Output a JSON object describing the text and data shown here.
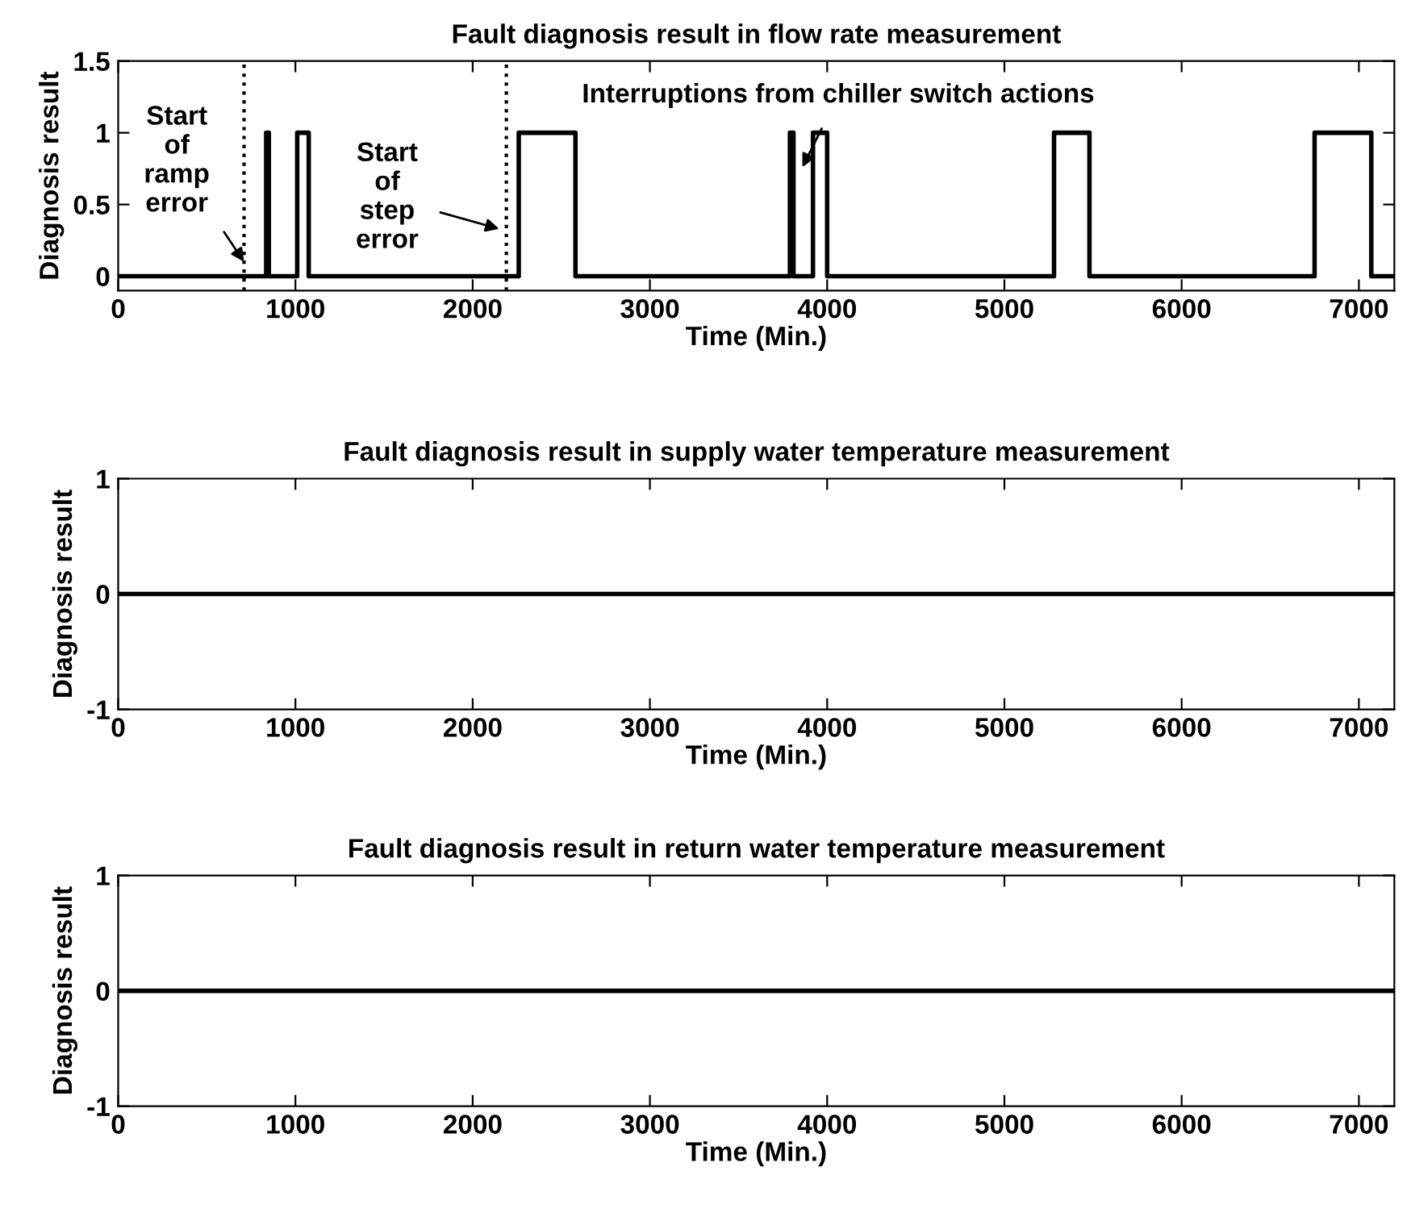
{
  "chart_data": [
    {
      "type": "line",
      "title": "Fault diagnosis result in flow rate measurement",
      "xlabel": "Time (Min.)",
      "ylabel": "Diagnosis result",
      "series": [
        {
          "color": "#000000",
          "x": [
            0,
            835,
            835,
            850,
            850,
            1010,
            1010,
            1075,
            1075,
            2260,
            2260,
            2580,
            2580,
            3790,
            3790,
            3810,
            3810,
            3920,
            3920,
            4000,
            4000,
            5280,
            5280,
            5480,
            5480,
            6750,
            6750,
            7070,
            7070,
            7200
          ],
          "values": [
            0,
            0,
            1,
            1,
            0,
            0,
            1,
            1,
            0,
            0,
            1,
            1,
            0,
            0,
            1,
            1,
            0,
            0,
            1,
            1,
            0,
            0,
            1,
            1,
            0,
            0,
            1,
            1,
            0,
            0
          ]
        }
      ],
      "xlim": [
        0,
        7200
      ],
      "ylim": [
        -0.1,
        1.5
      ],
      "xticks": [
        0,
        1000,
        2000,
        3000,
        4000,
        5000,
        6000,
        7000
      ],
      "yticks": [
        0,
        0.5,
        1,
        1.5
      ],
      "ref_lines": [
        {
          "axis": "x",
          "value": 710,
          "label": null,
          "color": "#000000",
          "line_style": "dotted"
        },
        {
          "axis": "x",
          "value": 2190,
          "label": null,
          "color": "#000000",
          "line_style": "dotted"
        }
      ],
      "annotations": [
        {
          "text": "Start\nof\nramp\nerror",
          "x": 710,
          "y": 0.1
        },
        {
          "text": "Start\nof\nstep\nerror",
          "x": 2150,
          "y": 0.33
        },
        {
          "text": "Interruptions from chiller switch actions",
          "x": 3860,
          "y": 0.76
        }
      ]
    },
    {
      "type": "line",
      "title": "Fault diagnosis result in supply water temperature measurement",
      "xlabel": "Time (Min.)",
      "ylabel": "Diagnosis result",
      "series": [
        {
          "color": "#000000",
          "x": [
            0,
            7200
          ],
          "values": [
            0,
            0
          ]
        }
      ],
      "xlim": [
        0,
        7200
      ],
      "ylim": [
        -1,
        1
      ],
      "xticks": [
        0,
        1000,
        2000,
        3000,
        4000,
        5000,
        6000,
        7000
      ],
      "yticks": [
        -1,
        0,
        1
      ]
    },
    {
      "type": "line",
      "title": "Fault diagnosis result in return water temperature measurement",
      "xlabel": "Time (Min.)",
      "ylabel": "Diagnosis result",
      "series": [
        {
          "color": "#000000",
          "x": [
            0,
            7200
          ],
          "values": [
            0,
            0
          ]
        }
      ],
      "xlim": [
        0,
        7200
      ],
      "ylim": [
        -1,
        1
      ],
      "xticks": [
        0,
        1000,
        2000,
        3000,
        4000,
        5000,
        6000,
        7000
      ],
      "yticks": [
        -1,
        0,
        1
      ]
    }
  ]
}
